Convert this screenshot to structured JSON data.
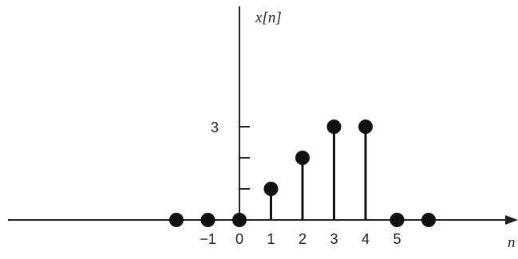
{
  "chart_data": {
    "type": "stem",
    "title": "",
    "xlabel": "n",
    "ylabel": "x[n]",
    "x": [
      -2,
      -1,
      0,
      1,
      2,
      3,
      4,
      5,
      6
    ],
    "values": [
      0,
      0,
      0,
      1,
      2,
      3,
      3,
      0,
      0
    ],
    "x_tick_labels": [
      {
        "value": -1,
        "label": "−1"
      },
      {
        "value": 0,
        "label": "0"
      },
      {
        "value": 1,
        "label": "1"
      },
      {
        "value": 2,
        "label": "2"
      },
      {
        "value": 3,
        "label": "3"
      },
      {
        "value": 4,
        "label": "4"
      },
      {
        "value": 5,
        "label": "5"
      }
    ],
    "y_ticks": [
      1,
      2,
      3
    ],
    "y_tick_labels": [
      {
        "value": 3,
        "label": "3"
      }
    ],
    "grid": false,
    "legend": "none",
    "colors": {
      "stem": "#111111",
      "axis": "#222222"
    }
  }
}
